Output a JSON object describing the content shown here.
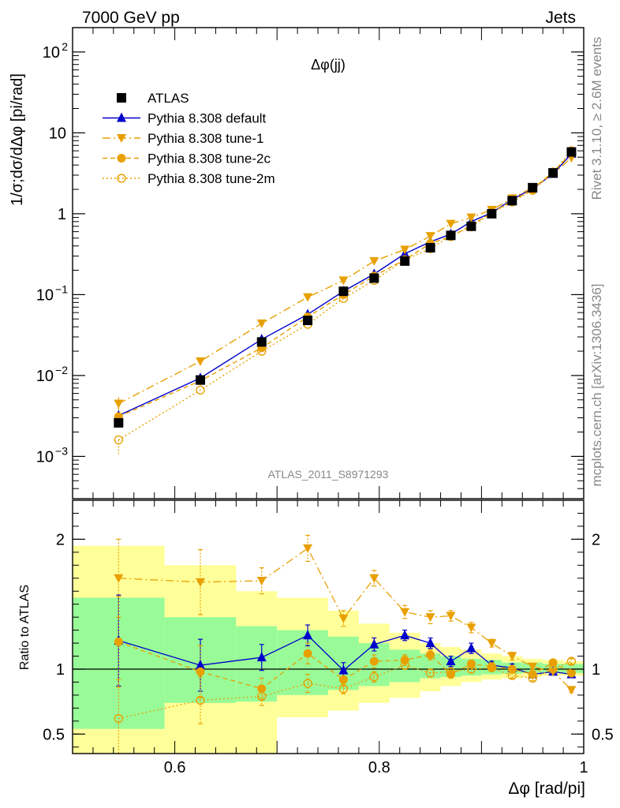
{
  "header": {
    "left": "7000 GeV pp",
    "right": "Jets"
  },
  "side_text": {
    "top": "Rivet 3.1.10, ≥ 2.6M events",
    "bottom": "mcplots.cern.ch [arXiv:1306.3436]"
  },
  "watermark": "ATLAS_2011_S8971293",
  "colors": {
    "atlas": "#000000",
    "default": "#0000cc",
    "tune": "#e8a000",
    "tune_marker": "#e8a000",
    "band_inner": "#98fb98",
    "band_outer": "#ffff99"
  },
  "chart_data": [
    {
      "type": "line",
      "panel": "main",
      "title": "Δφ(jj)",
      "ylabel": "1/σ;dσ/dΔφ [pi/rad]",
      "yscale": "log",
      "xlim": [
        0.5,
        1.0
      ],
      "ylim": [
        0.0003,
        200
      ],
      "yticks": [
        {
          "v": 0.001,
          "base": "10",
          "exp": "−3"
        },
        {
          "v": 0.01,
          "base": "10",
          "exp": "−2"
        },
        {
          "v": 0.1,
          "base": "10",
          "exp": "−1"
        },
        {
          "v": 1,
          "base": "1",
          "exp": ""
        },
        {
          "v": 10,
          "base": "10",
          "exp": ""
        },
        {
          "v": 100,
          "base": "10",
          "exp": "2"
        }
      ],
      "x": [
        0.545,
        0.625,
        0.685,
        0.73,
        0.765,
        0.795,
        0.825,
        0.85,
        0.87,
        0.89,
        0.91,
        0.93,
        0.95,
        0.97,
        0.988
      ],
      "series": [
        {
          "name": "ATLAS",
          "style": "data",
          "values": [
            0.0026,
            0.0088,
            0.026,
            0.048,
            0.11,
            0.16,
            0.26,
            0.38,
            0.54,
            0.7,
            1.0,
            1.45,
            2.1,
            3.2,
            5.8
          ]
        },
        {
          "name": "Pythia 8.308 default",
          "style": "default",
          "values": [
            0.0032,
            0.0093,
            0.028,
            0.057,
            0.11,
            0.18,
            0.32,
            0.45,
            0.56,
            0.8,
            1.03,
            1.5,
            2.05,
            3.1,
            5.5
          ]
        },
        {
          "name": "Pythia 8.308 tune-1",
          "style": "tune1",
          "values": [
            0.0045,
            0.015,
            0.044,
            0.093,
            0.15,
            0.26,
            0.36,
            0.53,
            0.75,
            0.9,
            1.12,
            1.55,
            2.1,
            3.1,
            4.9
          ]
        },
        {
          "name": "Pythia 8.308 tune-2c",
          "style": "tune2c",
          "values": [
            0.0031,
            0.0086,
            0.022,
            0.053,
            0.1,
            0.17,
            0.27,
            0.43,
            0.52,
            0.72,
            1.03,
            1.45,
            2.0,
            3.3,
            5.6
          ]
        },
        {
          "name": "Pythia 8.308 tune-2m",
          "style": "tune2m",
          "values": [
            0.0016,
            0.0066,
            0.02,
            0.043,
            0.09,
            0.15,
            0.27,
            0.37,
            0.53,
            0.69,
            1.02,
            1.4,
            1.95,
            3.2,
            6.0
          ]
        }
      ]
    },
    {
      "type": "line",
      "panel": "ratio",
      "ylabel": "Ratio to ATLAS",
      "xlabel": "Δφ [rad/pi]",
      "xlim": [
        0.5,
        1.0
      ],
      "ylim": [
        0.35,
        2.3
      ],
      "xticks": [
        "0.6",
        "0.8",
        "1"
      ],
      "yticks": [
        "0.5",
        "1",
        "2"
      ],
      "x": [
        0.545,
        0.625,
        0.685,
        0.73,
        0.765,
        0.795,
        0.825,
        0.85,
        0.87,
        0.89,
        0.91,
        0.93,
        0.95,
        0.97,
        0.988
      ],
      "bins": [
        0.5,
        0.59,
        0.66,
        0.7,
        0.75,
        0.78,
        0.81,
        0.84,
        0.86,
        0.88,
        0.9,
        0.92,
        0.94,
        0.96,
        0.98,
        1.0
      ],
      "band_inner": [
        [
          0.54,
          1.55
        ],
        [
          0.74,
          1.4
        ],
        [
          0.75,
          1.33
        ],
        [
          0.8,
          1.3
        ],
        [
          0.84,
          1.25
        ],
        [
          0.87,
          1.2
        ],
        [
          0.9,
          1.15
        ],
        [
          0.93,
          1.12
        ],
        [
          0.94,
          1.1
        ],
        [
          0.95,
          1.08
        ],
        [
          0.96,
          1.07
        ],
        [
          0.965,
          1.05
        ],
        [
          0.97,
          1.05
        ],
        [
          0.97,
          1.04
        ],
        [
          0.97,
          1.04
        ]
      ],
      "band_outer": [
        [
          0.35,
          1.95
        ],
        [
          0.35,
          1.8
        ],
        [
          0.35,
          1.6
        ],
        [
          0.63,
          1.55
        ],
        [
          0.68,
          1.45
        ],
        [
          0.74,
          1.35
        ],
        [
          0.78,
          1.28
        ],
        [
          0.83,
          1.2
        ],
        [
          0.87,
          1.17
        ],
        [
          0.9,
          1.15
        ],
        [
          0.92,
          1.12
        ],
        [
          0.93,
          1.1
        ],
        [
          0.94,
          1.08
        ],
        [
          0.95,
          1.07
        ],
        [
          0.95,
          1.06
        ]
      ],
      "series": [
        {
          "name": "Pythia 8.308 default",
          "style": "default",
          "values": [
            1.22,
            1.03,
            1.09,
            1.26,
            0.99,
            1.19,
            1.26,
            1.2,
            1.06,
            1.16,
            1.03,
            1.01,
            0.96,
            0.98,
            0.96
          ],
          "errors": [
            0.35,
            0.2,
            0.1,
            0.08,
            0.06,
            0.05,
            0.04,
            0.04,
            0.04,
            0.04,
            0.03,
            0.03,
            0.02,
            0.02,
            0.02
          ]
        },
        {
          "name": "Pythia 8.308 tune-1",
          "style": "tune1",
          "values": [
            1.7,
            1.67,
            1.68,
            1.93,
            1.39,
            1.7,
            1.44,
            1.4,
            1.41,
            1.32,
            1.2,
            1.1,
            1.02,
            0.98,
            0.84
          ],
          "errors": [
            0.3,
            0.25,
            0.1,
            0.1,
            0.06,
            0.06,
            0.05,
            0.05,
            0.04,
            0.04,
            0.03,
            0.03,
            0.02,
            0.02,
            0.02
          ]
        },
        {
          "name": "Pythia 8.308 tune-2c",
          "style": "tune2c",
          "values": [
            1.21,
            0.98,
            0.85,
            1.12,
            0.92,
            1.06,
            1.07,
            1.11,
            0.96,
            1.04,
            1.02,
            1.0,
            0.96,
            1.05,
            0.97
          ],
          "errors": [
            0.35,
            0.2,
            0.08,
            0.08,
            0.05,
            0.05,
            0.04,
            0.04,
            0.03,
            0.03,
            0.03,
            0.02,
            0.02,
            0.02,
            0.02
          ]
        },
        {
          "name": "Pythia 8.308 tune-2m",
          "style": "tune2m",
          "values": [
            0.62,
            0.76,
            0.79,
            0.89,
            0.85,
            0.94,
            1.03,
            0.97,
            0.98,
            1.0,
            1.01,
            0.95,
            0.93,
            1.0,
            1.06
          ],
          "errors": [
            0.3,
            0.18,
            0.07,
            0.07,
            0.04,
            0.04,
            0.03,
            0.03,
            0.03,
            0.03,
            0.02,
            0.02,
            0.02,
            0.02,
            0.02
          ]
        }
      ]
    }
  ]
}
